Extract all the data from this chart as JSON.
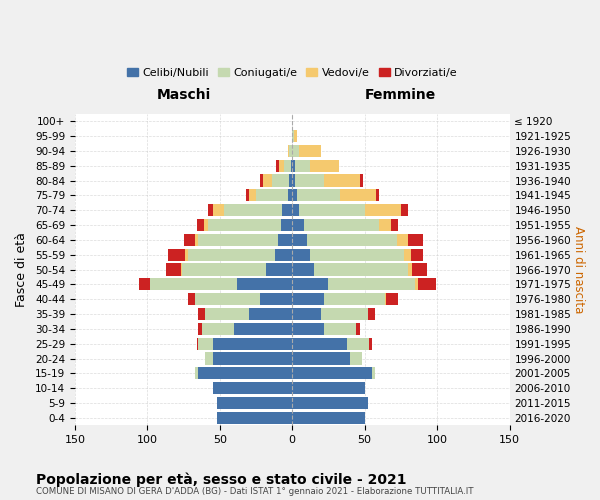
{
  "age_groups": [
    "0-4",
    "5-9",
    "10-14",
    "15-19",
    "20-24",
    "25-29",
    "30-34",
    "35-39",
    "40-44",
    "45-49",
    "50-54",
    "55-59",
    "60-64",
    "65-69",
    "70-74",
    "75-79",
    "80-84",
    "85-89",
    "90-94",
    "95-99",
    "100+"
  ],
  "birth_years": [
    "2016-2020",
    "2011-2015",
    "2006-2010",
    "2001-2005",
    "1996-2000",
    "1991-1995",
    "1986-1990",
    "1981-1985",
    "1976-1980",
    "1971-1975",
    "1966-1970",
    "1961-1965",
    "1956-1960",
    "1951-1955",
    "1946-1950",
    "1941-1945",
    "1936-1940",
    "1931-1935",
    "1926-1930",
    "1921-1925",
    "≤ 1920"
  ],
  "colors": {
    "celibe": "#4472a8",
    "coniugato": "#c5d9b0",
    "vedovo": "#f5c96e",
    "divorziato": "#cc2222"
  },
  "maschi": {
    "celibe": [
      52,
      52,
      55,
      65,
      55,
      55,
      40,
      30,
      22,
      38,
      18,
      12,
      10,
      8,
      7,
      3,
      2,
      1,
      0,
      0,
      0
    ],
    "coniugato": [
      0,
      0,
      0,
      2,
      5,
      10,
      22,
      30,
      45,
      60,
      58,
      60,
      55,
      50,
      40,
      22,
      12,
      5,
      2,
      0,
      0
    ],
    "vedovo": [
      0,
      0,
      0,
      0,
      0,
      0,
      0,
      0,
      0,
      0,
      1,
      2,
      2,
      3,
      8,
      5,
      6,
      3,
      1,
      0,
      0
    ],
    "divorziato": [
      0,
      0,
      0,
      0,
      0,
      1,
      3,
      5,
      5,
      8,
      10,
      12,
      8,
      5,
      3,
      2,
      2,
      2,
      0,
      0,
      0
    ]
  },
  "femmine": {
    "nubile": [
      50,
      52,
      50,
      55,
      40,
      38,
      22,
      20,
      22,
      25,
      15,
      12,
      10,
      8,
      5,
      3,
      2,
      2,
      0,
      0,
      0
    ],
    "coniugata": [
      0,
      0,
      0,
      2,
      8,
      15,
      22,
      32,
      42,
      60,
      65,
      65,
      62,
      52,
      45,
      30,
      20,
      10,
      5,
      1,
      0
    ],
    "vedova": [
      0,
      0,
      0,
      0,
      0,
      0,
      0,
      0,
      1,
      2,
      3,
      5,
      8,
      8,
      25,
      25,
      25,
      20,
      15,
      2,
      0
    ],
    "divorziata": [
      0,
      0,
      0,
      0,
      0,
      2,
      3,
      5,
      8,
      12,
      10,
      8,
      10,
      5,
      5,
      2,
      2,
      0,
      0,
      0,
      0
    ]
  },
  "xlim": 150,
  "title": "Popolazione per età, sesso e stato civile - 2021",
  "subtitle": "COMUNE DI MISANO DI GERA D'ADDA (BG) - Dati ISTAT 1° gennaio 2021 - Elaborazione TUTTITALIA.IT",
  "xlabel_maschi": "Maschi",
  "xlabel_femmine": "Femmine",
  "ylabel": "Fasce di età",
  "ylabel2": "Anni di nascita",
  "legend_labels": [
    "Celibi/Nubili",
    "Coniugati/e",
    "Vedovi/e",
    "Divorziati/e"
  ],
  "bg_color": "#f0f0f0",
  "plot_bg": "#ffffff"
}
